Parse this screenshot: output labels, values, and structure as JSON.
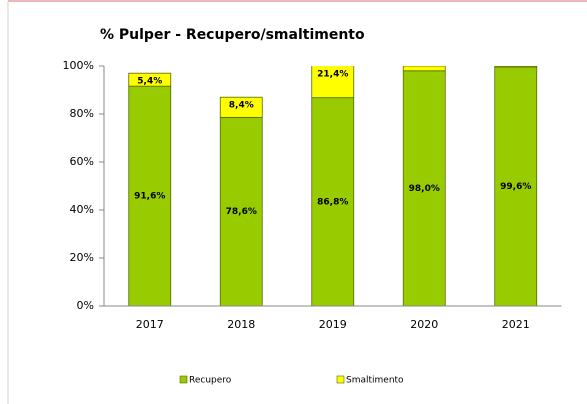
{
  "chart_data": {
    "type": "stacked_bar",
    "title": "% Pulper - Recupero/smaltimento",
    "categories": [
      "2017",
      "2018",
      "2019",
      "2020",
      "2021"
    ],
    "series": [
      {
        "name": "Recupero",
        "color": "#99cc00",
        "values": [
          91.6,
          78.6,
          86.8,
          98.0,
          99.6
        ],
        "value_labels": [
          "91,6%",
          "78,6%",
          "86,8%",
          "98,0%",
          "99,6%"
        ]
      },
      {
        "name": "Smaltimento",
        "color": "#ffff00",
        "values": [
          5.4,
          8.4,
          21.4,
          2.0,
          0.4
        ],
        "value_labels": [
          "5,4%",
          "8,4%",
          "21,4%",
          null,
          null
        ]
      }
    ],
    "ylim": [
      0,
      100
    ],
    "yticks": [
      {
        "value": 0,
        "label": "0%"
      },
      {
        "value": 20,
        "label": "20%"
      },
      {
        "value": 40,
        "label": "40%"
      },
      {
        "value": 60,
        "label": "60%"
      },
      {
        "value": 80,
        "label": "80%"
      },
      {
        "value": 100,
        "label": "100%"
      }
    ],
    "legend": "bottom"
  }
}
